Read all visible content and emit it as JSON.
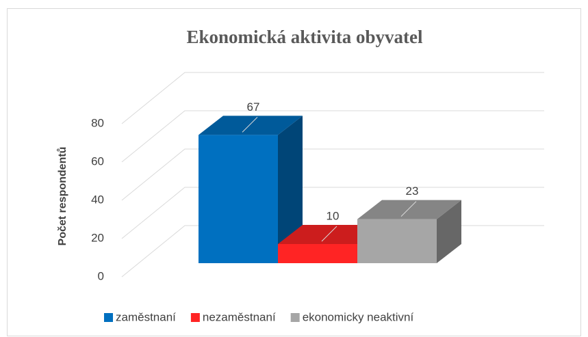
{
  "chart_data": {
    "type": "bar3d",
    "title": "Ekonomická aktivita obyvatel",
    "y_label": "Počet respondentů",
    "ylim": [
      0,
      80
    ],
    "yticks": [
      0,
      20,
      40,
      60,
      80
    ],
    "grid": true,
    "series": [
      {
        "name": "zaměstnaní",
        "color": "#0070c0",
        "values": [
          67
        ]
      },
      {
        "name": "nezaměstnaní",
        "color": "#ff2424",
        "values": [
          10
        ]
      },
      {
        "name": "ekonomicky neaktivní",
        "color": "#a6a6a6",
        "values": [
          23
        ]
      }
    ]
  }
}
